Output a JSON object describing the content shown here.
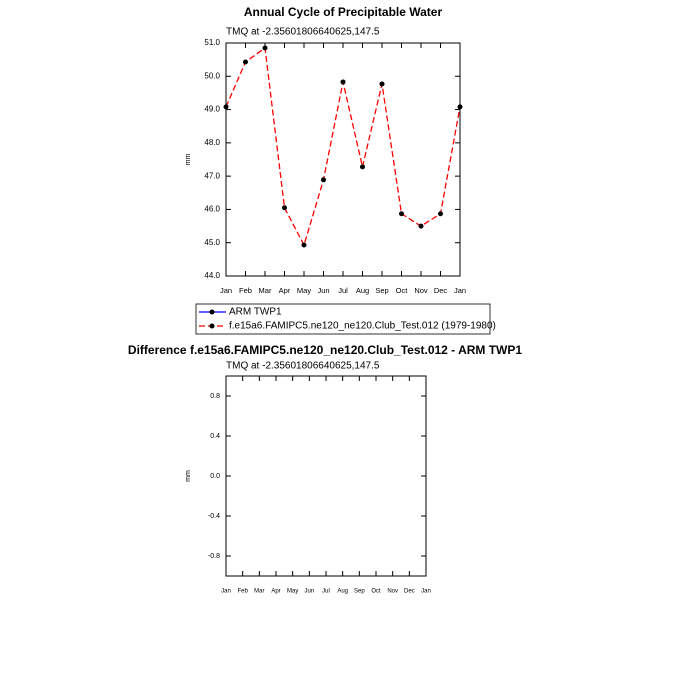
{
  "chart_data": [
    {
      "type": "line",
      "title": "Annual Cycle of Precipitable Water",
      "subtitle": "TMQ at -2.35601806640625,147.5",
      "y_label": "mm",
      "categories": [
        "Jan",
        "Feb",
        "Mar",
        "Apr",
        "May",
        "Jun",
        "Jul",
        "Aug",
        "Sep",
        "Oct",
        "Nov",
        "Dec",
        "Jan"
      ],
      "ylim": [
        44,
        51
      ],
      "yticks": [
        {
          "value": 44,
          "label": "44.0"
        },
        {
          "value": 45,
          "label": "45.0"
        },
        {
          "value": 46,
          "label": "46.0"
        },
        {
          "value": 47,
          "label": "47.0"
        },
        {
          "value": 48,
          "label": "48.0"
        },
        {
          "value": 49,
          "label": "49.0"
        },
        {
          "value": 50,
          "label": "50.0"
        },
        {
          "value": 51,
          "label": "51.0"
        }
      ],
      "legend": "below",
      "series": [
        {
          "name": "ARM TWP1",
          "color": "#0000ff",
          "line_style": "solid",
          "values": [
            null,
            null,
            null,
            null,
            null,
            null,
            null,
            null,
            null,
            null,
            null,
            null,
            null
          ]
        },
        {
          "name": "f.e15a6.FAMIPC5.ne120_ne120.Club_Test.012 (1979-1980)",
          "color": "#ff0000",
          "line_style": "dashed",
          "values": [
            49.08,
            50.43,
            50.85,
            46.05,
            44.93,
            46.89,
            49.83,
            47.28,
            49.77,
            45.87,
            45.5,
            45.87,
            49.08
          ]
        }
      ]
    },
    {
      "type": "line",
      "title": "Difference f.e15a6.FAMIPC5.ne120_ne120.Club_Test.012 - ARM TWP1",
      "subtitle": "TMQ at -2.35601806640625,147.5",
      "y_label": "mm",
      "categories": [
        "Jan",
        "Feb",
        "Mar",
        "Apr",
        "May",
        "Jun",
        "Jul",
        "Aug",
        "Sep",
        "Oct",
        "Nov",
        "Dec",
        "Jan"
      ],
      "ylim": [
        -1.0,
        1.0
      ],
      "yticks": [
        -0.8,
        -0.4,
        {
          "value": 0,
          "label": "0.0"
        },
        0.4,
        0.8
      ],
      "series": []
    }
  ]
}
